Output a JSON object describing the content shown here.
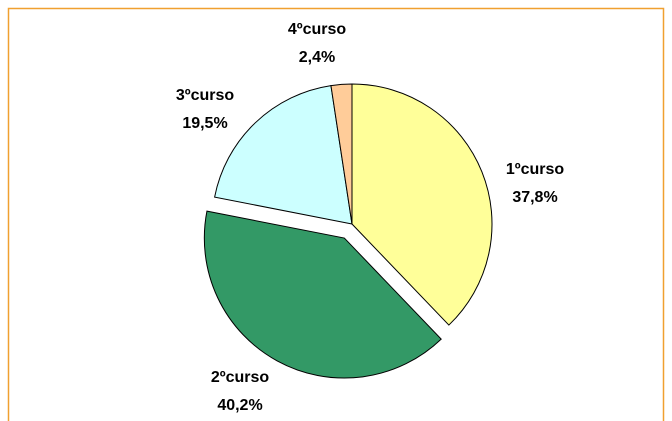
{
  "chart_data": {
    "type": "pie",
    "categories": [
      "1ºcurso",
      "2ºcurso",
      "3ºcurso",
      "4ºcurso"
    ],
    "values": [
      37.8,
      40.2,
      19.5,
      2.4
    ],
    "value_labels": [
      "37,8%",
      "40,2%",
      "19,5%",
      "2,4%"
    ],
    "colors": [
      "#FFFF99",
      "#339966",
      "#CCFFFF",
      "#FFCC99"
    ],
    "exploded": [
      false,
      true,
      false,
      false
    ]
  }
}
